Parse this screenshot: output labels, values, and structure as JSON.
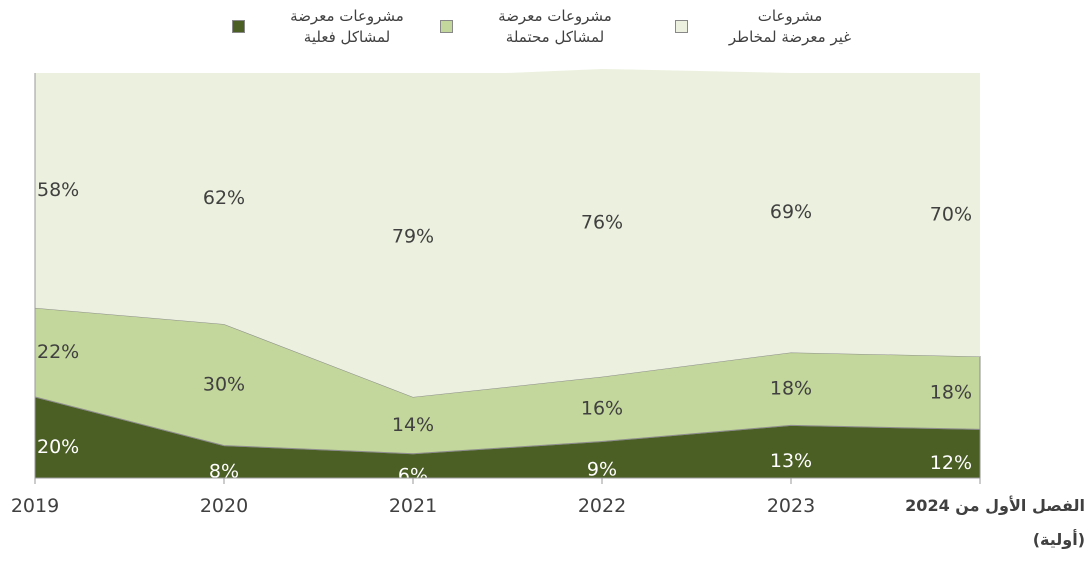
{
  "chart_data": {
    "type": "stacked_area",
    "categories": [
      "2019",
      "2020",
      "2021",
      "2022",
      "2023",
      "الفصل الأول من 2024\n(أولية)"
    ],
    "series": [
      {
        "name": "مشروعات معرضة\nلمشاكل فعلية",
        "color": "#4b5e24",
        "values": [
          20,
          8,
          6,
          9,
          13,
          12
        ],
        "value_labels": [
          "20%",
          "8%",
          "6%",
          "9%",
          "13%",
          "12%"
        ]
      },
      {
        "name": "مشروعات معرضة\nلمشاكل محتملة",
        "color": "#c3d69b",
        "values": [
          22,
          30,
          14,
          16,
          18,
          18
        ],
        "value_labels": [
          "22%",
          "30%",
          "14%",
          "16%",
          "18%",
          "18%"
        ]
      },
      {
        "name": "مشروعات\nغير معرضة لمخاطر",
        "color": "#ebf1de",
        "values": [
          58,
          62,
          79,
          76,
          69,
          70
        ],
        "value_labels": [
          "58%",
          "62%",
          "79%",
          "76%",
          "69%",
          "70%"
        ]
      }
    ],
    "ylim": [
      0,
      100
    ]
  }
}
